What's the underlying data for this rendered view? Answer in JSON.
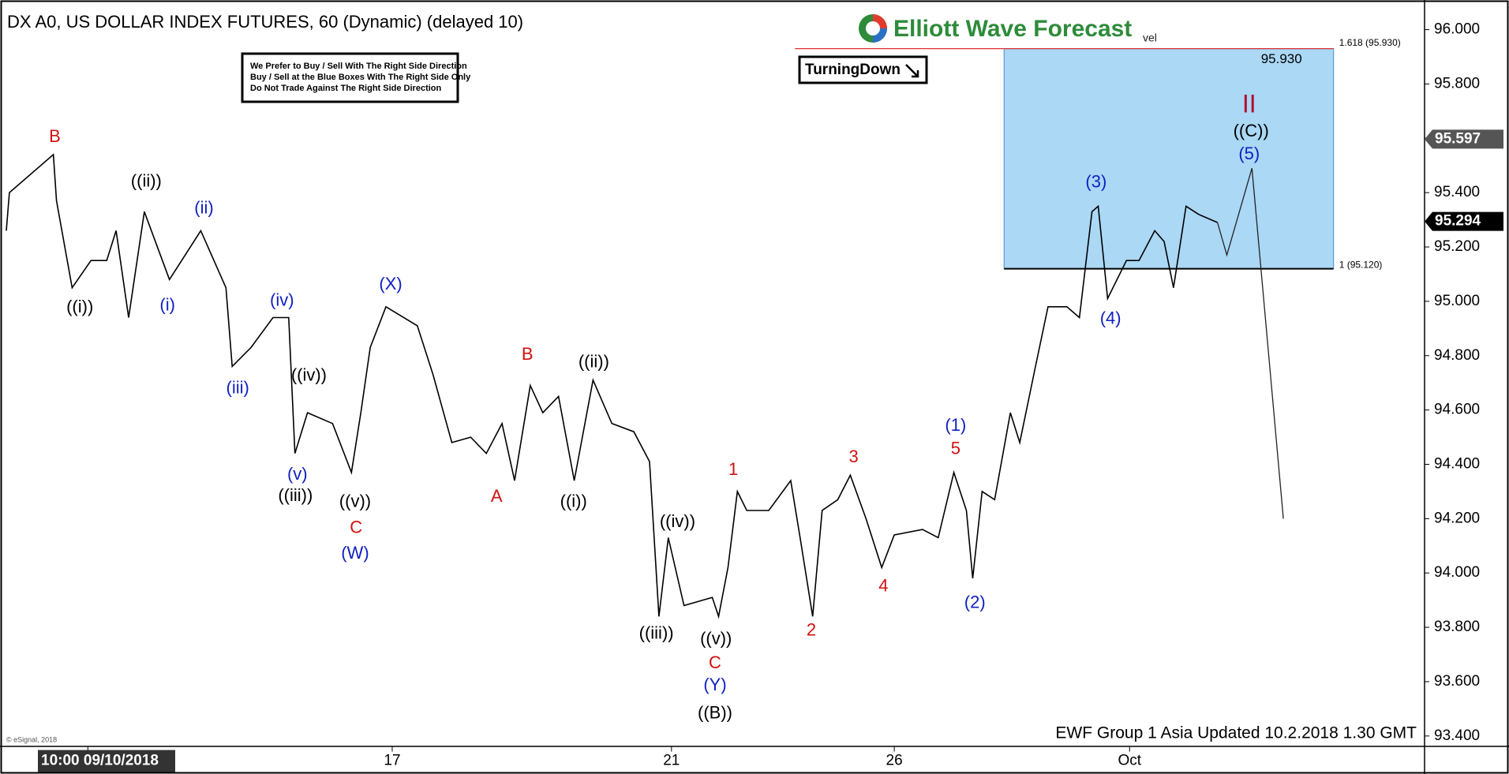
{
  "chart_data": {
    "type": "line",
    "title": "DX A0, US DOLLAR INDEX FUTURES, 60 (Dynamic) (delayed 10)",
    "brand": "Elliott Wave Forecast",
    "brand_suffix": "vel",
    "notice": [
      "We Prefer to Buy / Sell With The Right Side Direction",
      "Buy / Sell at the Blue Boxes With The Right Side Only",
      "Do Not Trade Against The Right Side Direction"
    ],
    "badge": "TurningDown",
    "footer": "EWF Group 1 Asia Updated 10.2.2018 1.30 GMT",
    "copyright": "© eSignal, 2018",
    "xlim": [
      0,
      454
    ],
    "xticks": [
      {
        "value": 28,
        "label": "10:00 09/10/2018"
      },
      {
        "value": 125,
        "label": "17"
      },
      {
        "value": 214,
        "label": "21"
      },
      {
        "value": 285,
        "label": "26"
      },
      {
        "value": 360,
        "label": "Oct"
      }
    ],
    "ylim": [
      93.36,
      96.08
    ],
    "yticks": [
      {
        "value": 93.4,
        "label": "93.400"
      },
      {
        "value": 93.6,
        "label": "93.600"
      },
      {
        "value": 93.8,
        "label": "93.800"
      },
      {
        "value": 94.0,
        "label": "94.000"
      },
      {
        "value": 94.2,
        "label": "94.200"
      },
      {
        "value": 94.4,
        "label": "94.400"
      },
      {
        "value": 94.6,
        "label": "94.600"
      },
      {
        "value": 94.8,
        "label": "94.800"
      },
      {
        "value": 95.0,
        "label": "95.000"
      },
      {
        "value": 95.2,
        "label": "95.200"
      },
      {
        "value": 95.4,
        "label": "95.400"
      },
      {
        "value": 95.6,
        "label": "95.600"
      },
      {
        "value": 95.8,
        "label": "95.800"
      },
      {
        "value": 96.0,
        "label": "96.000"
      }
    ],
    "series": [
      {
        "color": "#000000",
        "x": [
          2,
          3,
          17,
          18,
          23,
          29,
          34,
          37,
          41,
          46,
          54,
          64,
          72,
          74,
          80,
          87,
          92,
          94,
          98,
          106,
          112,
          115,
          118,
          123,
          133,
          138,
          144,
          150,
          155,
          160,
          164,
          169,
          173,
          178,
          183,
          189,
          195,
          202,
          207,
          210,
          213,
          218,
          227,
          229,
          232,
          235,
          238,
          245,
          252,
          255,
          259,
          262,
          267,
          271,
          276,
          281,
          285,
          294,
          299,
          304,
          308,
          310,
          313,
          317,
          322,
          325,
          330,
          334,
          340,
          344,
          348,
          350,
          353,
          359,
          363,
          368,
          371,
          374,
          378,
          382,
          388
        ],
        "values": [
          95.26,
          95.4,
          95.54,
          95.37,
          95.05,
          95.15,
          95.15,
          95.26,
          94.94,
          95.33,
          95.08,
          95.26,
          95.05,
          94.76,
          94.83,
          94.94,
          94.94,
          94.44,
          94.59,
          94.55,
          94.37,
          94.59,
          94.83,
          94.98,
          94.91,
          94.73,
          94.48,
          94.5,
          94.44,
          94.55,
          94.34,
          94.69,
          94.59,
          94.65,
          94.34,
          94.71,
          94.55,
          94.52,
          94.41,
          93.84,
          94.13,
          93.88,
          93.91,
          93.84,
          94.02,
          94.3,
          94.23,
          94.23,
          94.34,
          94.13,
          93.84,
          94.23,
          94.27,
          94.36,
          94.2,
          94.02,
          94.14,
          94.16,
          94.13,
          94.37,
          94.23,
          93.98,
          94.3,
          94.27,
          94.59,
          94.48,
          94.76,
          94.98,
          94.98,
          94.94,
          95.33,
          95.35,
          95.01,
          95.15,
          95.15,
          95.26,
          95.22,
          95.05,
          95.35,
          95.32,
          95.29
        ]
      },
      {
        "color": "#222222",
        "x": [
          388,
          391,
          399,
          409
        ],
        "values": [
          95.29,
          95.17,
          95.49,
          94.2
        ]
      }
    ],
    "box": {
      "x": [
        320,
        425
      ],
      "color": "#aad8f5",
      "top_label": "95.930",
      "levels": [
        {
          "value": 95.93,
          "label": "1.618 (95.930)"
        },
        {
          "value": 95.12,
          "label": "1 (95.120)"
        }
      ]
    },
    "price_tags": [
      {
        "value": 95.597,
        "color": "#555555"
      },
      {
        "value": 95.294,
        "color": "#000000"
      }
    ],
    "annotations": [
      {
        "text": "B",
        "color": "#d01010"
      },
      {
        "text": "((ii))",
        "color": "#000000"
      },
      {
        "text": "(ii)",
        "color": "#1020c0"
      },
      {
        "text": "((i))",
        "color": "#000000"
      },
      {
        "text": "(i)",
        "color": "#1020c0"
      },
      {
        "text": "(iv)",
        "color": "#1020c0"
      },
      {
        "text": "(iii)",
        "color": "#1020c0"
      },
      {
        "text": "((iv))",
        "color": "#000000"
      },
      {
        "text": "(v)",
        "color": "#1020c0"
      },
      {
        "text": "((iii))",
        "color": "#000000"
      },
      {
        "text": "((v))",
        "color": "#000000"
      },
      {
        "text": "C",
        "color": "#d01010"
      },
      {
        "text": "(W)",
        "color": "#1020c0"
      },
      {
        "text": "(X)",
        "color": "#1020c0"
      },
      {
        "text": "B",
        "color": "#d01010"
      },
      {
        "text": "((ii))",
        "color": "#000000"
      },
      {
        "text": "A",
        "color": "#d01010"
      },
      {
        "text": "((i))",
        "color": "#000000"
      },
      {
        "text": "((iv))",
        "color": "#000000"
      },
      {
        "text": "((iii))",
        "color": "#000000"
      },
      {
        "text": "((v))",
        "color": "#000000"
      },
      {
        "text": "C",
        "color": "#d01010"
      },
      {
        "text": "(Y)",
        "color": "#1020c0"
      },
      {
        "text": "((B))",
        "color": "#000000"
      },
      {
        "text": "1",
        "color": "#d01010"
      },
      {
        "text": "2",
        "color": "#d01010"
      },
      {
        "text": "3",
        "color": "#d01010"
      },
      {
        "text": "4",
        "color": "#d01010"
      },
      {
        "text": "5",
        "color": "#d01010"
      },
      {
        "text": "(1)",
        "color": "#1020c0"
      },
      {
        "text": "(2)",
        "color": "#1020c0"
      },
      {
        "text": "(3)",
        "color": "#1020c0"
      },
      {
        "text": "(4)",
        "color": "#1020c0"
      },
      {
        "text": "II",
        "color": "#b01030"
      },
      {
        "text": "((C))",
        "color": "#000000"
      },
      {
        "text": "(5)",
        "color": "#1020c0"
      }
    ]
  }
}
